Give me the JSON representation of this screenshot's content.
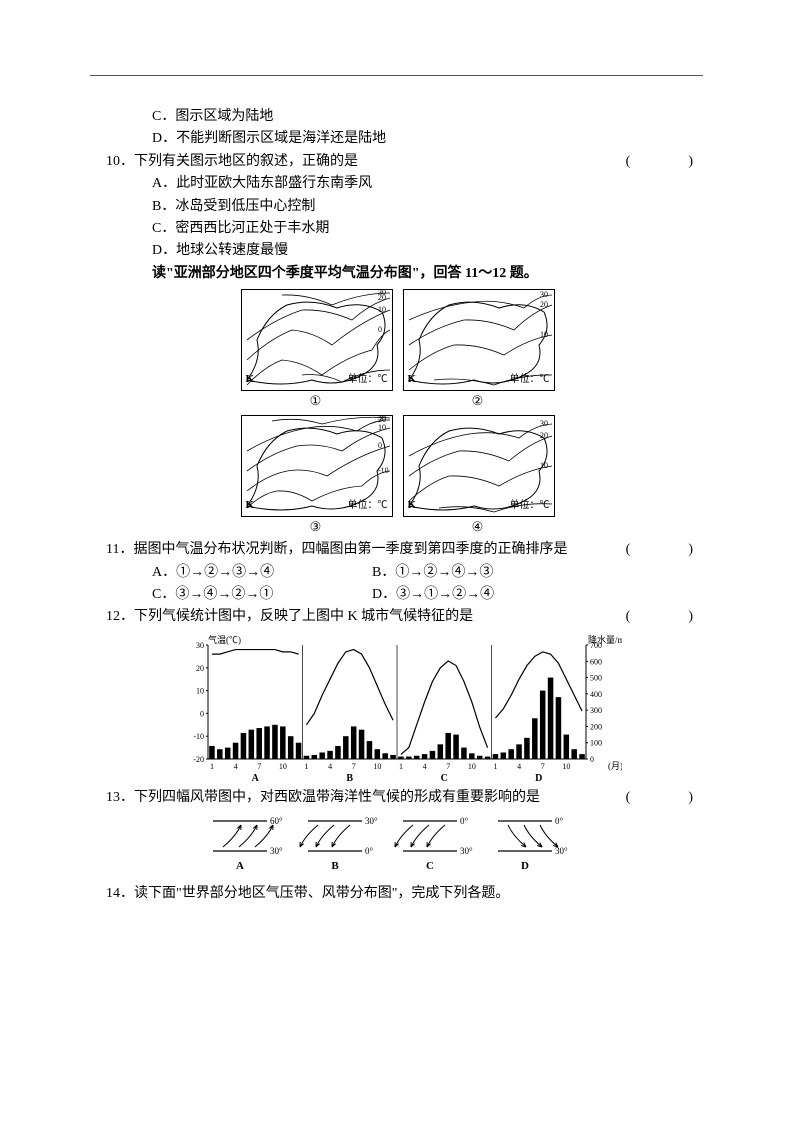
{
  "q9": {
    "c": "C．图示区域为陆地",
    "d": "D．不能判断图示区域是海洋还是陆地"
  },
  "q10": {
    "num": "10．",
    "stem": "下列有关图示地区的叙述，正确的是",
    "a": "A．此时亚欧大陆东部盛行东南季风",
    "b": "B．冰岛受到低压中心控制",
    "c": "C．密西西比河正处于丰水期",
    "d": "D．地球公转速度最慢"
  },
  "section2": {
    "intro": "读\"亚洲部分地区四个季度平均气温分布图\"，回答 11～12 题。",
    "map_k": "K",
    "map_unit": "单位：℃",
    "labels": {
      "m1": "①",
      "m2": "②",
      "m3": "③",
      "m4": "④"
    }
  },
  "q11": {
    "num": "11．",
    "stem": "据图中气温分布状况判断，四幅图由第一季度到第四季度的正确排序是",
    "a": "A．①→②→③→④",
    "b": "B．①→②→④→③",
    "c": "C．③→④→②→①",
    "d": "D．③→①→②→④"
  },
  "q12": {
    "num": "12．",
    "stem": "下列气候统计图中，反映了上图中 K 城市气候特征的是"
  },
  "climate_chart": {
    "left_axis_label": "气温(℃)",
    "right_axis_label": "降水量/mm",
    "left_ticks": [
      30,
      20,
      10,
      0,
      -10,
      -20
    ],
    "right_ticks": [
      700,
      600,
      500,
      400,
      300,
      200,
      100,
      0
    ],
    "x_ticks": [
      1,
      4,
      7,
      10
    ],
    "month_label": "(月)",
    "panels": [
      "A",
      "B",
      "C",
      "D"
    ],
    "temp_curves": {
      "A": [
        26,
        26,
        27,
        28,
        28,
        28,
        28,
        28,
        28,
        27,
        27,
        26
      ],
      "B": [
        -5,
        0,
        8,
        15,
        22,
        27,
        28,
        26,
        20,
        12,
        4,
        -3
      ],
      "C": [
        -18,
        -15,
        -5,
        5,
        14,
        20,
        23,
        21,
        14,
        5,
        -6,
        -15
      ],
      "D": [
        -2,
        2,
        8,
        15,
        21,
        25,
        27,
        26,
        22,
        15,
        8,
        1
      ]
    },
    "precip_bars": {
      "A": [
        80,
        60,
        70,
        100,
        160,
        180,
        190,
        200,
        210,
        200,
        140,
        100
      ],
      "B": [
        20,
        25,
        40,
        50,
        80,
        140,
        200,
        180,
        110,
        60,
        35,
        25
      ],
      "C": [
        15,
        15,
        20,
        30,
        50,
        90,
        160,
        150,
        70,
        35,
        20,
        15
      ],
      "D": [
        30,
        40,
        60,
        90,
        130,
        250,
        420,
        500,
        380,
        150,
        60,
        30
      ]
    },
    "colors": {
      "bar": "#000000",
      "line": "#000000",
      "axis": "#000000",
      "bg": "#ffffff"
    },
    "y_temp_range": [
      -20,
      30
    ],
    "y_precip_range": [
      0,
      700
    ]
  },
  "q13": {
    "num": "13．",
    "stem": "下列四幅风带图中，对西欧温带海洋性气候的形成有重要影响的是"
  },
  "wind_chart": {
    "panels": [
      "A",
      "B",
      "C",
      "D"
    ],
    "lat_labels": {
      "A": [
        "60°",
        "30°"
      ],
      "B": [
        "30°",
        "0°"
      ],
      "C": [
        "0°",
        "30°"
      ],
      "D": [
        "0°",
        "30°"
      ]
    },
    "arrow_dx": {
      "A": 18,
      "B": -18,
      "C": -18,
      "D": 18
    },
    "arrow_dir": {
      "A": "up",
      "B": "down",
      "C": "down",
      "D": "down"
    }
  },
  "q14": {
    "num": "14．",
    "stem": "读下面\"世界部分地区气压带、风带分布图\"，完成下列各题。"
  },
  "paren": "(　　)"
}
